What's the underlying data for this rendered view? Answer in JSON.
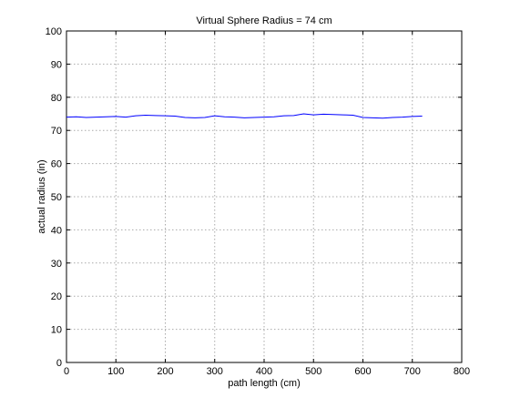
{
  "chart_data": {
    "type": "line",
    "title": "Virtual Sphere Radius = 74 cm",
    "xlabel": "path length (cm)",
    "ylabel": "actual radius (in)",
    "xlim": [
      0,
      800
    ],
    "ylim": [
      0,
      100
    ],
    "xticks": [
      0,
      100,
      200,
      300,
      400,
      500,
      600,
      700,
      800
    ],
    "yticks": [
      0,
      10,
      20,
      30,
      40,
      50,
      60,
      70,
      80,
      90,
      100
    ],
    "grid": true,
    "series": [
      {
        "color": "#0000ff",
        "x": [
          0,
          20,
          40,
          60,
          80,
          100,
          120,
          140,
          160,
          180,
          200,
          220,
          240,
          260,
          280,
          300,
          320,
          340,
          360,
          380,
          400,
          420,
          440,
          460,
          480,
          500,
          520,
          540,
          560,
          580,
          600,
          620,
          640,
          660,
          680,
          700,
          720
        ],
        "y": [
          74.0,
          74.1,
          73.9,
          74.0,
          74.1,
          74.2,
          74.0,
          74.4,
          74.6,
          74.5,
          74.4,
          74.3,
          73.9,
          73.8,
          73.9,
          74.4,
          74.1,
          74.0,
          73.8,
          73.9,
          74.0,
          74.1,
          74.4,
          74.5,
          75.0,
          74.7,
          74.9,
          74.8,
          74.7,
          74.6,
          73.9,
          73.8,
          73.7,
          73.9,
          74.0,
          74.2,
          74.3
        ]
      }
    ]
  }
}
